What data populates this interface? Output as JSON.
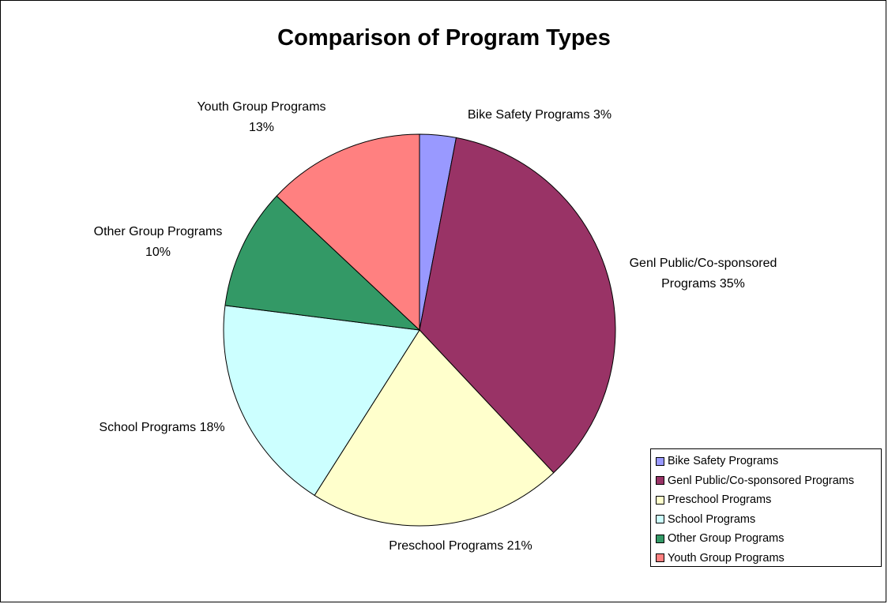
{
  "chart_data": {
    "type": "pie",
    "title": "Comparison of Program Types",
    "slices": [
      {
        "name": "Bike Safety Programs",
        "value": 3,
        "label": "Bike Safety Programs 3%",
        "color": "#9999ff"
      },
      {
        "name": "Genl Public/Co-sponsored Programs",
        "value": 35,
        "label": "Genl Public/Co-sponsored Programs 35%",
        "color": "#993366"
      },
      {
        "name": "Preschool Programs",
        "value": 21,
        "label": "Preschool Programs 21%",
        "color": "#ffffcc"
      },
      {
        "name": "School Programs",
        "value": 18,
        "label": "School Programs 18%",
        "color": "#ccffff"
      },
      {
        "name": "Other Group Programs",
        "value": 10,
        "label": "Other Group Programs 10%",
        "color": "#339966"
      },
      {
        "name": "Youth Group Programs",
        "value": 13,
        "label": "Youth Group Programs 13%",
        "color": "#ff8080"
      }
    ],
    "legend": {
      "position": "bottom-right",
      "entries": [
        "Bike Safety Programs",
        "Genl Public/Co-sponsored Programs",
        "Preschool Programs",
        "School Programs",
        "Other Group Programs",
        "Youth Group Programs"
      ]
    }
  }
}
